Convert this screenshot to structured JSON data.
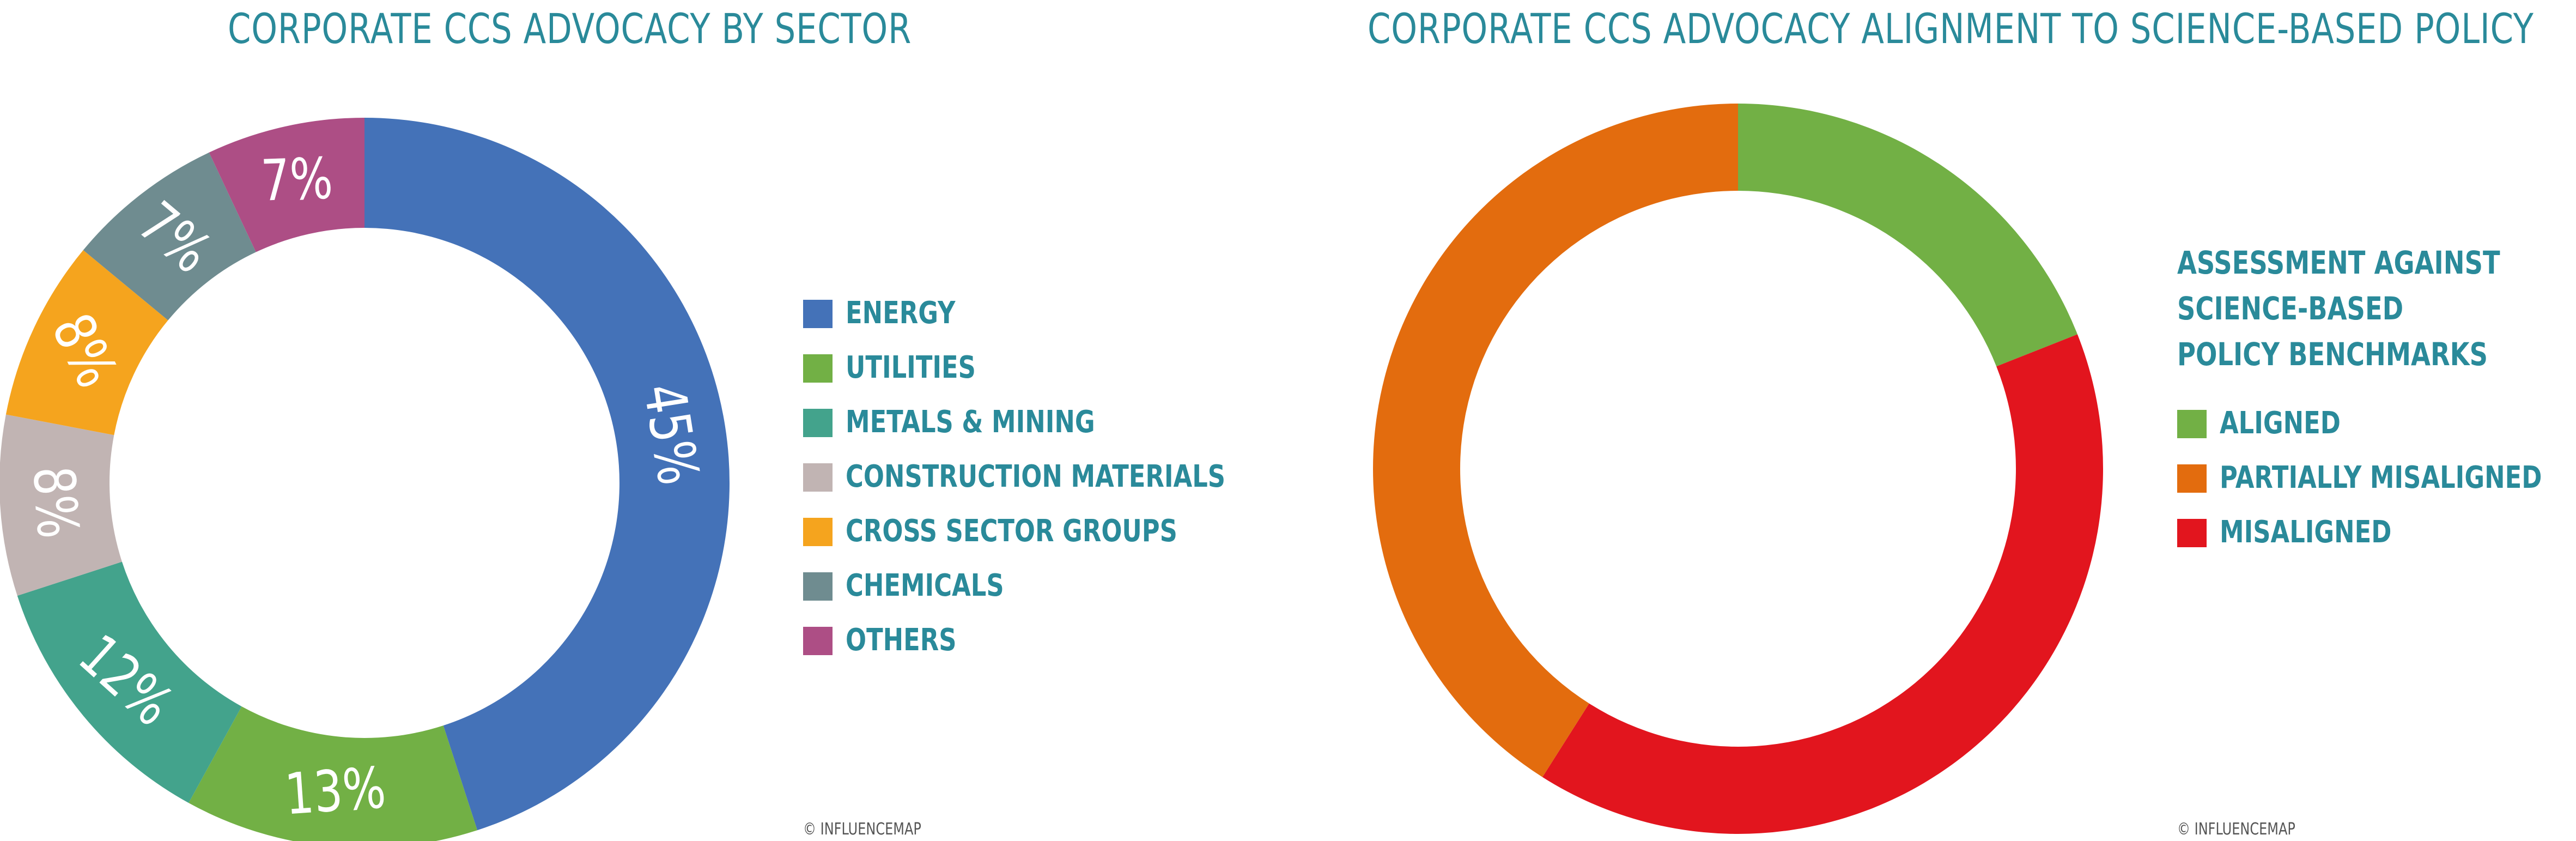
{
  "colors": {
    "title": "#2a8a9a",
    "energy": "#4472b8",
    "utilities": "#72b045",
    "metals_mining": "#43a38c",
    "construction_materials": "#c1b4b3",
    "cross_sector_groups": "#f5a41e",
    "chemicals": "#6f8c90",
    "others": "#ad4e85",
    "aligned": "#72b045",
    "partially_misaligned": "#e36c0e",
    "misaligned": "#e2151e"
  },
  "credit_text": "© INFLUENCEMAP",
  "chart_data": [
    {
      "type": "pie",
      "variant": "donut",
      "title": "CORPORATE CCS ADVOCACY BY SECTOR",
      "legend_placement": "right",
      "categories": [
        "ENERGY",
        "UTILITIES",
        "METALS & MINING",
        "CONSTRUCTION MATERIALS",
        "CROSS SECTOR GROUPS",
        "CHEMICALS",
        "OTHERS"
      ],
      "values": [
        45,
        13,
        12,
        8,
        8,
        7,
        7
      ],
      "data_labels": [
        "45%",
        "13%",
        "12%",
        "8%",
        "8%",
        "7%",
        "7%"
      ],
      "unit": "%"
    },
    {
      "type": "pie",
      "variant": "donut",
      "title": "CORPORATE CCS ADVOCACY ALIGNMENT TO SCIENCE-BASED POLICY",
      "legend_title": "ASSESSMENT AGAINST SCIENCE-BASED POLICY BENCHMARKS",
      "legend_title_lines": [
        "ASSESSMENT AGAINST",
        "SCIENCE-BASED",
        "POLICY BENCHMARKS"
      ],
      "legend_placement": "right",
      "categories": [
        "ALIGNED",
        "PARTIALLY MISALIGNED",
        "MISALIGNED"
      ],
      "values": [
        19,
        41,
        40
      ],
      "unit": "%"
    }
  ]
}
